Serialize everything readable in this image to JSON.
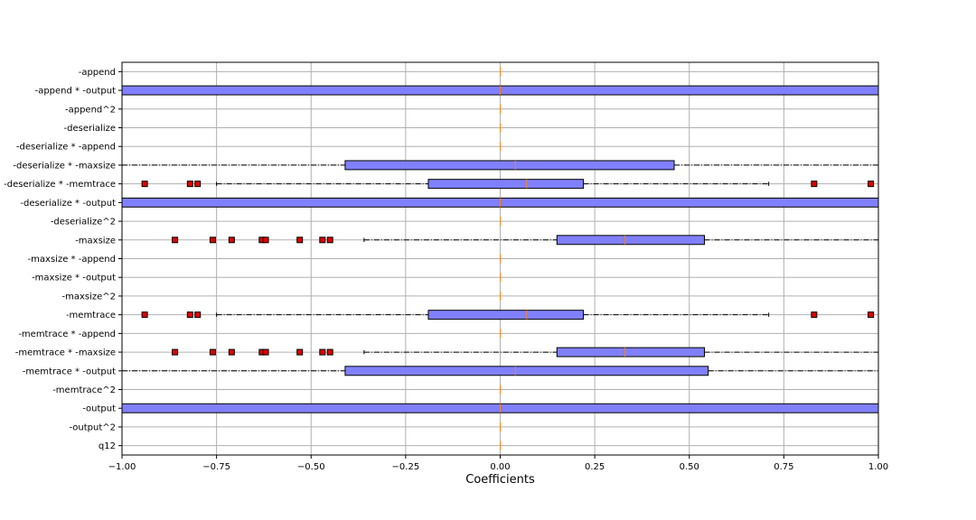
{
  "chart_data": {
    "type": "boxplot",
    "orientation": "horizontal",
    "xlabel": "Coefficients",
    "xlim": [
      -1.0,
      1.0
    ],
    "xticks": [
      -1.0,
      -0.75,
      -0.5,
      -0.25,
      0.0,
      0.25,
      0.5,
      0.75,
      1.0
    ],
    "xtick_labels": [
      "−1.00",
      "−0.75",
      "−0.50",
      "−0.25",
      "0.00",
      "0.25",
      "0.50",
      "0.75",
      "1.00"
    ],
    "grid": true,
    "colors": {
      "box_fill": "#8080ff",
      "median": "#ff7f0e",
      "flier": "#e00000",
      "grid": "#b0b0b0"
    },
    "categories": [
      {
        "label": "-append",
        "whisker_low": 0.0,
        "q1": 0.0,
        "median": 0.0,
        "q3": 0.0,
        "whisker_high": 0.0,
        "fliers": []
      },
      {
        "label": "-append * -output",
        "whisker_low": -1.0,
        "q1": -1.0,
        "median": 0.0,
        "q3": 1.0,
        "whisker_high": 1.0,
        "fliers": []
      },
      {
        "label": "-append^2",
        "whisker_low": 0.0,
        "q1": 0.0,
        "median": 0.0,
        "q3": 0.0,
        "whisker_high": 0.0,
        "fliers": []
      },
      {
        "label": "-deserialize",
        "whisker_low": 0.0,
        "q1": 0.0,
        "median": 0.0,
        "q3": 0.0,
        "whisker_high": 0.0,
        "fliers": []
      },
      {
        "label": "-deserialize * -append",
        "whisker_low": 0.0,
        "q1": 0.0,
        "median": 0.0,
        "q3": 0.0,
        "whisker_high": 0.0,
        "fliers": []
      },
      {
        "label": "-deserialize * -maxsize",
        "whisker_low": -1.0,
        "q1": -0.41,
        "median": 0.04,
        "q3": 0.46,
        "whisker_high": 1.0,
        "fliers": []
      },
      {
        "label": "-deserialize * -memtrace",
        "whisker_low": -0.75,
        "q1": -0.19,
        "median": 0.07,
        "q3": 0.22,
        "whisker_high": 0.71,
        "fliers": [
          -0.94,
          -0.82,
          -0.8,
          0.83,
          0.98
        ]
      },
      {
        "label": "-deserialize * -output",
        "whisker_low": -1.0,
        "q1": -1.0,
        "median": 0.0,
        "q3": 1.0,
        "whisker_high": 1.0,
        "fliers": []
      },
      {
        "label": "-deserialize^2",
        "whisker_low": 0.0,
        "q1": 0.0,
        "median": 0.0,
        "q3": 0.0,
        "whisker_high": 0.0,
        "fliers": []
      },
      {
        "label": "-maxsize",
        "whisker_low": -0.36,
        "q1": 0.15,
        "median": 0.33,
        "q3": 0.54,
        "whisker_high": 1.0,
        "fliers": [
          -0.86,
          -0.76,
          -0.71,
          -0.63,
          -0.62,
          -0.53,
          -0.47,
          -0.45
        ]
      },
      {
        "label": "-maxsize * -append",
        "whisker_low": 0.0,
        "q1": 0.0,
        "median": 0.0,
        "q3": 0.0,
        "whisker_high": 0.0,
        "fliers": []
      },
      {
        "label": "-maxsize * -output",
        "whisker_low": 0.0,
        "q1": 0.0,
        "median": 0.0,
        "q3": 0.0,
        "whisker_high": 0.0,
        "fliers": []
      },
      {
        "label": "-maxsize^2",
        "whisker_low": 0.0,
        "q1": 0.0,
        "median": 0.0,
        "q3": 0.0,
        "whisker_high": 0.0,
        "fliers": []
      },
      {
        "label": "-memtrace",
        "whisker_low": -0.75,
        "q1": -0.19,
        "median": 0.07,
        "q3": 0.22,
        "whisker_high": 0.71,
        "fliers": [
          -0.94,
          -0.82,
          -0.8,
          0.83,
          0.98
        ]
      },
      {
        "label": "-memtrace * -append",
        "whisker_low": 0.0,
        "q1": 0.0,
        "median": 0.0,
        "q3": 0.0,
        "whisker_high": 0.0,
        "fliers": []
      },
      {
        "label": "-memtrace * -maxsize",
        "whisker_low": -0.36,
        "q1": 0.15,
        "median": 0.33,
        "q3": 0.54,
        "whisker_high": 1.0,
        "fliers": [
          -0.86,
          -0.76,
          -0.71,
          -0.63,
          -0.62,
          -0.53,
          -0.47,
          -0.45
        ]
      },
      {
        "label": "-memtrace * -output",
        "whisker_low": -1.0,
        "q1": -0.41,
        "median": 0.04,
        "q3": 0.55,
        "whisker_high": 1.0,
        "fliers": []
      },
      {
        "label": "-memtrace^2",
        "whisker_low": 0.0,
        "q1": 0.0,
        "median": 0.0,
        "q3": 0.0,
        "whisker_high": 0.0,
        "fliers": []
      },
      {
        "label": "-output",
        "whisker_low": -1.0,
        "q1": -1.0,
        "median": 0.0,
        "q3": 1.0,
        "whisker_high": 1.0,
        "fliers": []
      },
      {
        "label": "-output^2",
        "whisker_low": 0.0,
        "q1": 0.0,
        "median": 0.0,
        "q3": 0.0,
        "whisker_high": 0.0,
        "fliers": []
      },
      {
        "label": "q12",
        "whisker_low": 0.0,
        "q1": 0.0,
        "median": 0.0,
        "q3": 0.0,
        "whisker_high": 0.0,
        "fliers": []
      }
    ]
  }
}
